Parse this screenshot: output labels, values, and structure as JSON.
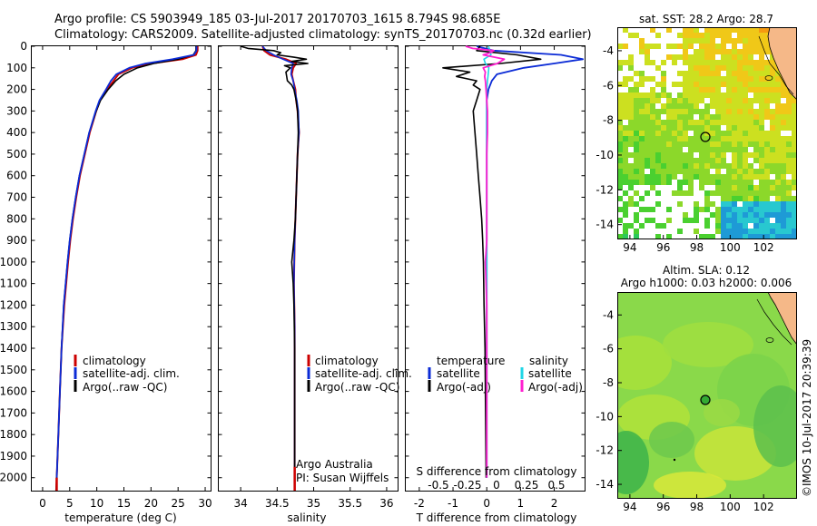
{
  "header": {
    "line1": "Argo profile: CS 5903949_185 03-Jul-2017 20170703_1615 8.794S 98.685E",
    "line2": "Climatology: CARS2009. Satellite-adjusted climatology: synTS_20170703.nc (0.32d earlier)"
  },
  "colors": {
    "clim": "#cc0000",
    "sat": "#0b2bd6",
    "argo": "#000000",
    "sal_sat": "#1fd6e6",
    "sal_argo": "#ff1fd0",
    "land": "#f5b888",
    "map_top_bg": "#4cc24c",
    "map_bot_bg": "#8ad94a"
  },
  "chart_data": [
    {
      "type": "line",
      "name": "temperature-profile",
      "xlabel": "temperature (deg C)",
      "ylabel": "",
      "xlim": [
        -2,
        31
      ],
      "ylim": [
        2060,
        0
      ],
      "xticks": [
        0,
        5,
        10,
        15,
        20,
        25,
        30
      ],
      "yticks": [
        0,
        100,
        200,
        300,
        400,
        500,
        600,
        700,
        800,
        900,
        1000,
        1100,
        1200,
        1300,
        1400,
        1500,
        1600,
        1700,
        1800,
        1900,
        2000
      ],
      "legend": [
        "climatology",
        "satellite-adj. clim.",
        "Argo(..raw -QC)"
      ],
      "series": [
        {
          "name": "climatology",
          "depth": [
            0,
            20,
            40,
            60,
            80,
            100,
            130,
            160,
            200,
            250,
            300,
            400,
            500,
            600,
            700,
            800,
            900,
            1000,
            1200,
            1400,
            1600,
            1800,
            2000,
            2060
          ],
          "values": [
            28.6,
            28.6,
            28.3,
            25.8,
            20.0,
            16.5,
            14.0,
            13.1,
            11.9,
            10.6,
            9.9,
            8.7,
            7.8,
            6.9,
            6.2,
            5.6,
            5.1,
            4.7,
            4.0,
            3.5,
            3.2,
            2.9,
            2.6,
            2.5
          ]
        },
        {
          "name": "satellite-adj. clim.",
          "depth": [
            0,
            20,
            40,
            60,
            80,
            100,
            130,
            160,
            200,
            250,
            300,
            400,
            500,
            600,
            700,
            800,
            900,
            1000,
            1200,
            1400,
            1600,
            1800,
            2000,
            2060
          ],
          "values": [
            28.3,
            28.3,
            27.8,
            25.0,
            20.5,
            17.5,
            15.0,
            13.5,
            12.1,
            10.7,
            9.9,
            8.6,
            7.7,
            6.8,
            6.1,
            5.5,
            5.0,
            4.6,
            3.9,
            3.5,
            3.2,
            2.9,
            2.6,
            2.5
          ]
        },
        {
          "name": "Argo(..raw -QC)",
          "depth": [
            0,
            20,
            40,
            60,
            80,
            100,
            130,
            160,
            200,
            250,
            300,
            400,
            500,
            600,
            700,
            800,
            900,
            1000,
            1200,
            1400,
            1600,
            1800,
            2000
          ],
          "values": [
            28.4,
            28.4,
            27.9,
            24.0,
            19.0,
            16.0,
            13.6,
            12.6,
            11.7,
            10.5,
            9.8,
            8.6,
            7.7,
            6.8,
            6.1,
            5.5,
            5.0,
            4.6,
            3.9,
            3.5,
            3.2,
            2.9,
            2.6
          ]
        }
      ]
    },
    {
      "type": "line",
      "name": "salinity-profile",
      "xlabel": "salinity",
      "xlim": [
        33.7,
        36.15
      ],
      "ylim": [
        2060,
        0
      ],
      "xticks": [
        34,
        34.5,
        35,
        35.5,
        36
      ],
      "legend": [
        "climatology",
        "satellite-adj. clim.",
        "Argo(..raw -QC)"
      ],
      "annotations": [
        "Argo Australia",
        "PI: Susan Wijffels"
      ],
      "series": [
        {
          "name": "climatology",
          "depth": [
            0,
            20,
            40,
            60,
            80,
            100,
            130,
            160,
            200,
            250,
            300,
            400,
            500,
            700,
            900,
            1100,
            1300,
            1500,
            1700,
            1900,
            2060
          ],
          "values": [
            34.3,
            34.32,
            34.4,
            34.62,
            34.76,
            34.72,
            34.7,
            34.72,
            34.75,
            34.76,
            34.78,
            34.8,
            34.78,
            34.76,
            34.74,
            34.73,
            34.74,
            34.74,
            34.74,
            34.74,
            34.74
          ]
        },
        {
          "name": "satellite-adj. clim.",
          "depth": [
            0,
            20,
            40,
            60,
            80,
            100,
            130,
            160,
            200,
            250,
            300,
            400,
            500,
            700,
            900,
            1100,
            1300,
            1500,
            1700,
            1900,
            2060
          ],
          "values": [
            34.3,
            34.35,
            34.45,
            34.58,
            34.72,
            34.7,
            34.69,
            34.72,
            34.74,
            34.77,
            34.79,
            34.8,
            34.78,
            34.76,
            34.74,
            34.73,
            34.74,
            34.74,
            34.74,
            34.74,
            34.74
          ]
        },
        {
          "name": "Argo(..raw -QC)",
          "depth": [
            0,
            10,
            20,
            30,
            40,
            50,
            60,
            70,
            80,
            90,
            100,
            120,
            140,
            160,
            180,
            200,
            250,
            300,
            400,
            500,
            600,
            700,
            800,
            900,
            1000,
            1100,
            1200,
            1400,
            1600,
            1800,
            2000
          ],
          "values": [
            34.0,
            34.1,
            34.45,
            34.55,
            34.5,
            34.72,
            34.9,
            34.7,
            34.92,
            34.6,
            34.68,
            34.62,
            34.63,
            34.64,
            34.7,
            34.73,
            34.76,
            34.78,
            34.79,
            34.78,
            34.77,
            34.76,
            34.75,
            34.73,
            34.7,
            34.72,
            34.73,
            34.74,
            34.74,
            34.74,
            34.74
          ]
        }
      ]
    },
    {
      "type": "line",
      "name": "difference-profile",
      "xlabel": "T difference from climatology",
      "xlim": [
        -2.4,
        2.9
      ],
      "ylim": [
        2060,
        0
      ],
      "xticks": [
        -2,
        -1,
        0,
        1,
        2
      ],
      "top_axis_label": "S difference from climatology",
      "top_ticks": [
        "-0.5",
        "-0.25",
        "0",
        "0.25",
        "0.5"
      ],
      "legend_temperature": {
        "heading": "temperature",
        "items": [
          "satellite",
          "Argo(-adj)"
        ]
      },
      "legend_salinity": {
        "heading": "salinity",
        "items": [
          "satellite",
          "Argo(-adj)"
        ]
      },
      "series": [
        {
          "name": "T satellite",
          "depth": [
            0,
            20,
            40,
            60,
            80,
            100,
            130,
            160,
            200,
            250,
            300,
            400,
            600,
            800,
            1000,
            1400,
            2000
          ],
          "values": [
            -0.3,
            0.2,
            2.2,
            2.85,
            2.0,
            1.1,
            0.3,
            0.15,
            0.05,
            0.0,
            0.0,
            0.0,
            0.0,
            0.0,
            0.0,
            0.0,
            0.0
          ]
        },
        {
          "name": "T Argo(-adj)",
          "depth": [
            0,
            20,
            40,
            60,
            80,
            100,
            120,
            140,
            160,
            180,
            200,
            250,
            300,
            400,
            500,
            600,
            700,
            800,
            900,
            1000,
            1200,
            1400,
            1600,
            1800,
            2000
          ],
          "values": [
            -0.2,
            -0.3,
            0.9,
            1.6,
            0.4,
            -1.3,
            -0.5,
            -0.9,
            -0.3,
            -0.4,
            -0.2,
            -0.3,
            -0.4,
            -0.35,
            -0.3,
            -0.25,
            -0.2,
            -0.15,
            -0.12,
            -0.1,
            -0.08,
            -0.05,
            -0.04,
            -0.03,
            -0.02
          ]
        },
        {
          "name": "S satellite",
          "depth": [
            0,
            20,
            40,
            60,
            80,
            100,
            130,
            160,
            200,
            250,
            300,
            400,
            600,
            800,
            1000,
            1400,
            2000
          ],
          "values": [
            0.02,
            0.05,
            0.06,
            -0.04,
            -0.02,
            0.03,
            0.02,
            0.01,
            0.0,
            0.0,
            0.0,
            0.0,
            0.0,
            0.0,
            0.0,
            0.0,
            0.0
          ]
        },
        {
          "name": "S Argo(-adj)",
          "depth": [
            0,
            10,
            20,
            30,
            40,
            60,
            80,
            100,
            120,
            140,
            160,
            200,
            250,
            300,
            400,
            500,
            600,
            700,
            800,
            900,
            1000,
            1200,
            1400,
            1600,
            1800,
            2000
          ],
          "values": [
            -0.3,
            -0.2,
            0.1,
            0.05,
            -0.05,
            0.25,
            0.15,
            -0.05,
            -0.02,
            -0.03,
            -0.02,
            -0.01,
            0.0,
            0.01,
            0.01,
            0.0,
            0.0,
            0.0,
            0.0,
            0.0,
            -0.02,
            0.0,
            0.0,
            0.0,
            0.0,
            0.0
          ]
        }
      ]
    },
    {
      "type": "heatmap",
      "name": "sst-map",
      "title": "sat. SST: 28.2 Argo: 28.7",
      "xticks": [
        94,
        96,
        98,
        100,
        102
      ],
      "yticks": [
        -4,
        -6,
        -8,
        -10,
        -12,
        -14
      ],
      "xlim": [
        93.3,
        104
      ],
      "ylim": [
        -14.8,
        -2.7
      ],
      "argo_position": [
        98.685,
        -8.794
      ]
    },
    {
      "type": "heatmap",
      "name": "sla-map",
      "title_line1": "Altim. SLA: 0.12",
      "title_line2": "Argo h1000: 0.03 h2000: 0.006",
      "xticks": [
        94,
        96,
        98,
        100,
        102
      ],
      "yticks": [
        -4,
        -6,
        -8,
        -10,
        -12,
        -14
      ],
      "xlim": [
        93.3,
        104
      ],
      "ylim": [
        -14.8,
        -2.7
      ],
      "argo_position": [
        98.685,
        -8.794
      ]
    }
  ],
  "footer": {
    "credit": "©IMOS 10-Jul-2017 20:39:39"
  }
}
